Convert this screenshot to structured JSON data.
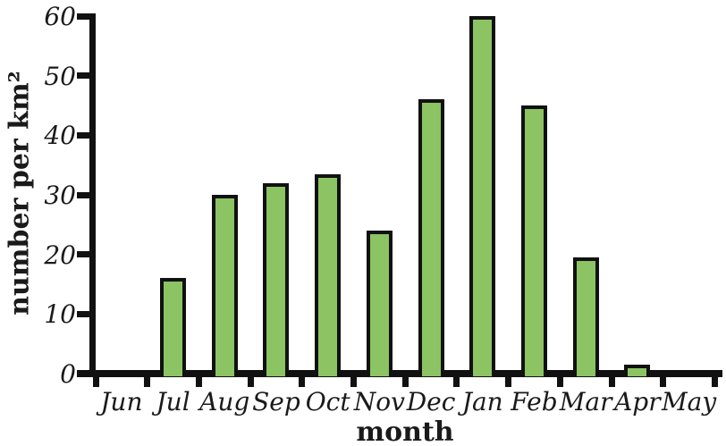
{
  "chart_data": {
    "type": "bar",
    "title": "",
    "xlabel": "month",
    "ylabel": "number per km²",
    "categories": [
      "Jun",
      "Jul",
      "Aug",
      "Sep",
      "Oct",
      "Nov",
      "Dec",
      "Jan",
      "Feb",
      "Mar",
      "Apr",
      "May"
    ],
    "values": [
      0,
      16,
      30,
      32,
      33.5,
      24,
      46,
      60,
      45,
      19.5,
      1.5,
      0
    ],
    "ylim": [
      0,
      60
    ],
    "yticks": [
      0,
      10,
      20,
      30,
      40,
      50,
      60
    ],
    "grid": false,
    "legend": null,
    "colors": {
      "bar_fill": "#8cc363",
      "bar_stroke": "#111111",
      "axis": "#111111",
      "text": "#1a1a1a"
    }
  }
}
